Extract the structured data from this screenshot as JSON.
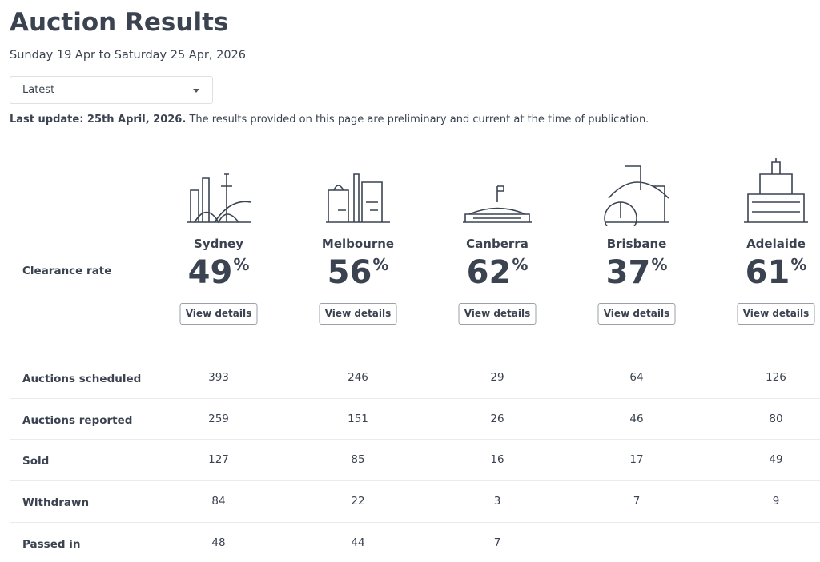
{
  "header": {
    "title": "Auction Results",
    "subtitle": "Sunday 19 Apr to Saturday 25 Apr, 2026"
  },
  "dropdown": {
    "label": "Latest"
  },
  "notice": {
    "bold": "Last update: 25th April, 2026.",
    "text": "The results provided on this page are preliminary and current at the time of publication."
  },
  "table": {
    "clearance_label": "Clearance rate",
    "cities": [
      {
        "name": "Sydney",
        "clearance": 49,
        "unit": "%",
        "button": "View details"
      },
      {
        "name": "Melbourne",
        "clearance": 56,
        "unit": "%",
        "button": "View details"
      },
      {
        "name": "Canberra",
        "clearance": 62,
        "unit": "%",
        "button": "View details"
      },
      {
        "name": "Brisbane",
        "clearance": 37,
        "unit": "%",
        "button": "View details"
      },
      {
        "name": "Adelaide",
        "clearance": 61,
        "unit": "%",
        "button": "View details"
      }
    ],
    "rows": [
      {
        "label": "Auctions scheduled",
        "values": [
          393,
          246,
          29,
          64,
          126
        ]
      },
      {
        "label": "Auctions reported",
        "values": [
          259,
          151,
          26,
          46,
          80
        ]
      },
      {
        "label": "Sold",
        "values": [
          127,
          85,
          16,
          17,
          49
        ]
      },
      {
        "label": "Withdrawn",
        "values": [
          84,
          22,
          3,
          7,
          9
        ]
      },
      {
        "label": "Passed in",
        "values": [
          48,
          44,
          7,
          null,
          null
        ]
      }
    ]
  }
}
